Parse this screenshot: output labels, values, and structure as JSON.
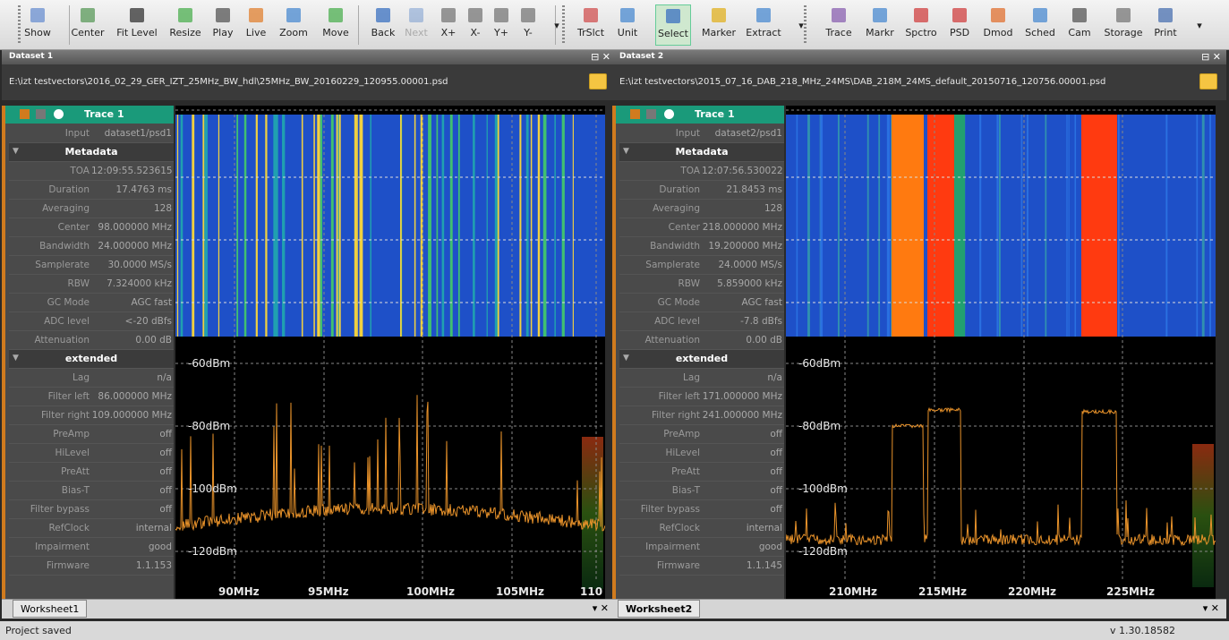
{
  "toolbar": {
    "items": [
      {
        "id": "show",
        "label": "Show",
        "icon": "show-icon",
        "color": "#6a8fd0",
        "disabled": false
      },
      {
        "id": "center",
        "label": "Center",
        "icon": "center-icon",
        "color": "#5a9a5a",
        "disabled": false
      },
      {
        "id": "fitlevel",
        "label": "Fit Level",
        "icon": "fit-level-icon",
        "color": "#333333",
        "disabled": false
      },
      {
        "id": "resize",
        "label": "Resize",
        "icon": "resize-icon",
        "color": "#4caf50",
        "disabled": false
      },
      {
        "id": "play",
        "label": "Play",
        "icon": "play-icon",
        "color": "#555555",
        "disabled": false
      },
      {
        "id": "live",
        "label": "Live",
        "icon": "live-icon",
        "color": "#e08030",
        "disabled": false
      },
      {
        "id": "zoom",
        "label": "Zoom",
        "icon": "zoom-icon",
        "color": "#4a8ad0",
        "disabled": false
      },
      {
        "id": "move",
        "label": "Move",
        "icon": "move-icon",
        "color": "#4caf50",
        "disabled": false
      },
      {
        "id": "back",
        "label": "Back",
        "icon": "back-icon",
        "color": "#3a70c0",
        "disabled": false
      },
      {
        "id": "next",
        "label": "Next",
        "icon": "next-icon",
        "color": "#3a70c0",
        "disabled": true
      },
      {
        "id": "xplus",
        "label": "X+",
        "icon": "x-plus-icon",
        "color": "#777777",
        "disabled": false
      },
      {
        "id": "xminus",
        "label": "X-",
        "icon": "x-minus-icon",
        "color": "#777777",
        "disabled": false
      },
      {
        "id": "yplus",
        "label": "Y+",
        "icon": "y-plus-icon",
        "color": "#777777",
        "disabled": false
      },
      {
        "id": "yminus",
        "label": "Y-",
        "icon": "y-minus-icon",
        "color": "#777777",
        "disabled": false
      },
      {
        "id": "trslct",
        "label": "TrSlct",
        "icon": "trace-select-icon",
        "color": "#d05050",
        "disabled": false
      },
      {
        "id": "unit",
        "label": "Unit",
        "icon": "unit-icon",
        "color": "#4a8ad0",
        "disabled": false
      },
      {
        "id": "select",
        "label": "Select",
        "icon": "select-icon",
        "color": "#3a70c0",
        "disabled": false,
        "active": true
      },
      {
        "id": "marker",
        "label": "Marker",
        "icon": "marker-icon",
        "color": "#e0b020",
        "disabled": false
      },
      {
        "id": "extract",
        "label": "Extract",
        "icon": "extract-icon",
        "color": "#4a8ad0",
        "disabled": false
      },
      {
        "id": "trace",
        "label": "Trace",
        "icon": "trace-icon",
        "color": "#8a60b0",
        "disabled": false
      },
      {
        "id": "markr",
        "label": "Markr",
        "icon": "markr-icon",
        "color": "#4a8ad0",
        "disabled": false
      },
      {
        "id": "spctro",
        "label": "Spctro",
        "icon": "spectro-icon",
        "color": "#d04040",
        "disabled": false
      },
      {
        "id": "psd",
        "label": "PSD",
        "icon": "psd-icon",
        "color": "#d04040",
        "disabled": false
      },
      {
        "id": "dmod",
        "label": "Dmod",
        "icon": "dmod-icon",
        "color": "#e07030",
        "disabled": false
      },
      {
        "id": "sched",
        "label": "Sched",
        "icon": "sched-icon",
        "color": "#4a8ad0",
        "disabled": false
      },
      {
        "id": "cam",
        "label": "Cam",
        "icon": "cam-icon",
        "color": "#555555",
        "disabled": false
      },
      {
        "id": "storage",
        "label": "Storage",
        "icon": "storage-icon",
        "color": "#777777",
        "disabled": false
      },
      {
        "id": "print",
        "label": "Print",
        "icon": "print-icon",
        "color": "#4a70b0",
        "disabled": false
      }
    ]
  },
  "panels": [
    {
      "title": "Dataset 1",
      "path": "E:\\izt testvectors\\2016_02_29_GER_IZT_25MHz_BW_hdl\\25MHz_BW_20160229_120955.00001.psd",
      "trace": "Trace 1",
      "rows_top": [
        {
          "k": "Input",
          "v": "dataset1/psd1"
        }
      ],
      "metadata_label": "Metadata",
      "metadata": [
        {
          "k": "TOA",
          "v": "12:09:55.523615"
        },
        {
          "k": "Duration",
          "v": "17.4763 ms"
        },
        {
          "k": "Averaging",
          "v": "128"
        },
        {
          "k": "Center",
          "v": "98.000000 MHz"
        },
        {
          "k": "Bandwidth",
          "v": "24.000000 MHz"
        },
        {
          "k": "Samplerate",
          "v": "30.0000 MS/s"
        },
        {
          "k": "RBW",
          "v": "7.324000 kHz"
        },
        {
          "k": "GC Mode",
          "v": "AGC fast"
        },
        {
          "k": "ADC level",
          "v": "<-20 dBfs"
        },
        {
          "k": "Attenuation",
          "v": "0.00 dB"
        }
      ],
      "extended_label": "extended",
      "extended": [
        {
          "k": "Lag",
          "v": "n/a"
        },
        {
          "k": "Filter left",
          "v": "86.000000 MHz"
        },
        {
          "k": "Filter right",
          "v": "109.000000 MHz"
        },
        {
          "k": "PreAmp",
          "v": "off"
        },
        {
          "k": "HiLevel",
          "v": "off"
        },
        {
          "k": "PreAtt",
          "v": "off"
        },
        {
          "k": "Bias-T",
          "v": "off"
        },
        {
          "k": "Filter bypass",
          "v": "off"
        },
        {
          "k": "RefClock",
          "v": "internal"
        },
        {
          "k": "Impairment",
          "v": "good"
        },
        {
          "k": "Firmware",
          "v": "1.1.153"
        }
      ],
      "ylabels": [
        "-60dBm",
        "-80dBm",
        "-100dBm",
        "-120dBm"
      ],
      "xlabels": [
        "90MHz",
        "95MHz",
        "100MHz",
        "105MHz",
        "110"
      ],
      "tab": "Worksheet1",
      "spectrum": "fm",
      "waterfall": "fm"
    },
    {
      "title": "Dataset 2",
      "path": "E:\\izt testvectors\\2015_07_16_DAB_218_MHz_24MS\\DAB_218M_24MS_default_20150716_120756.00001.psd",
      "trace": "Trace 1",
      "rows_top": [
        {
          "k": "Input",
          "v": "dataset2/psd1"
        }
      ],
      "metadata_label": "Metadata",
      "metadata": [
        {
          "k": "TOA",
          "v": "12:07:56.530022"
        },
        {
          "k": "Duration",
          "v": "21.8453 ms"
        },
        {
          "k": "Averaging",
          "v": "128"
        },
        {
          "k": "Center",
          "v": "218.000000 MHz"
        },
        {
          "k": "Bandwidth",
          "v": "19.200000 MHz"
        },
        {
          "k": "Samplerate",
          "v": "24.0000 MS/s"
        },
        {
          "k": "RBW",
          "v": "5.859000 kHz"
        },
        {
          "k": "GC Mode",
          "v": "AGC fast"
        },
        {
          "k": "ADC level",
          "v": "-7.8 dBfs"
        },
        {
          "k": "Attenuation",
          "v": "0.00 dB"
        }
      ],
      "extended_label": "extended",
      "extended": [
        {
          "k": "Lag",
          "v": "n/a"
        },
        {
          "k": "Filter left",
          "v": "171.000000 MHz"
        },
        {
          "k": "Filter right",
          "v": "241.000000 MHz"
        },
        {
          "k": "PreAmp",
          "v": "off"
        },
        {
          "k": "HiLevel",
          "v": "off"
        },
        {
          "k": "PreAtt",
          "v": "off"
        },
        {
          "k": "Bias-T",
          "v": "off"
        },
        {
          "k": "Filter bypass",
          "v": "off"
        },
        {
          "k": "RefClock",
          "v": "internal"
        },
        {
          "k": "Impairment",
          "v": "good"
        },
        {
          "k": "Firmware",
          "v": "1.1.145"
        }
      ],
      "ylabels": [
        "-60dBm",
        "-80dBm",
        "-100dBm",
        "-120dBm"
      ],
      "xlabels": [
        "210MHz",
        "215MHz",
        "220MHz",
        "225MHz"
      ],
      "tab": "Worksheet2",
      "spectrum": "dab",
      "waterfall": "dab"
    }
  ],
  "status": {
    "left": "Project saved",
    "version": "v 1.30.18582"
  },
  "colors": {
    "trace": "#e8922a",
    "waterfall_base": "#1e50c8",
    "waterfall_line": "#2ea0c0",
    "dab_orange": "#ff7a10",
    "dab_red": "#ff3a10",
    "accent": "#1a9a7a",
    "window_ctl": "⊟ ✕",
    "tab_ctl": "▾ ✕"
  }
}
